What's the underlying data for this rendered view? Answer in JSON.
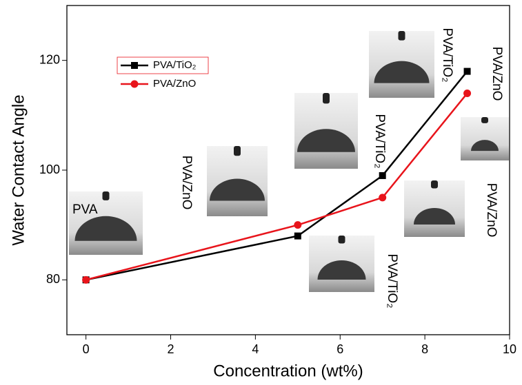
{
  "chart_data": {
    "type": "line",
    "x_label": "Concentration (wt%)",
    "y_label": "Water Contact Angle",
    "x": [
      0,
      5,
      7,
      9
    ],
    "series": [
      {
        "name": "PVA/TiO₂",
        "color": "#000000",
        "marker": "square",
        "values": [
          80,
          88,
          99,
          118
        ]
      },
      {
        "name": "PVA/ZnO",
        "color": "#e8141b",
        "marker": "circle",
        "values": [
          80,
          90,
          95,
          114
        ]
      }
    ],
    "xlim": [
      -0.45,
      10
    ],
    "xticks": [
      0,
      2,
      4,
      6,
      8,
      10
    ],
    "ylim": [
      70,
      130
    ],
    "yticks": [
      80,
      100,
      120
    ],
    "annotations": [
      "PVA",
      "PVA/ZnO",
      "PVA/TiO₂",
      "PVA/TiO₂",
      "PVA/ZnO",
      "PVA/ZnO",
      "PVA/TiO₂"
    ]
  }
}
